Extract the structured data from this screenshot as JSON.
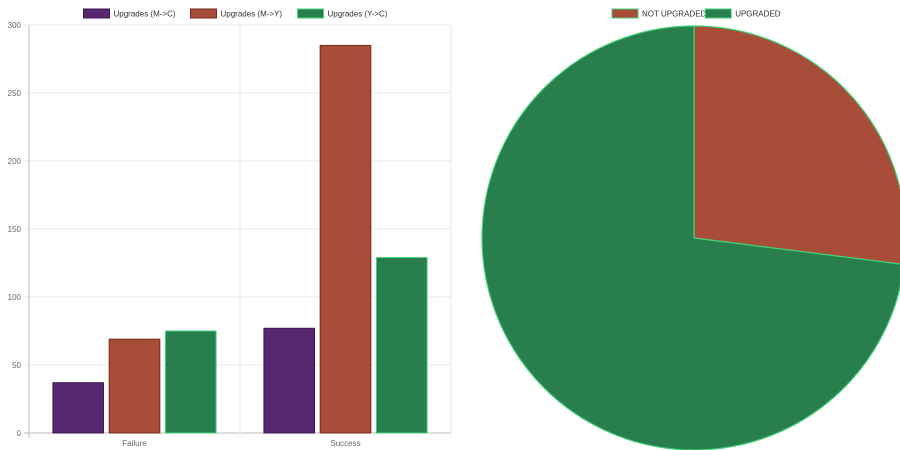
{
  "chart_data": [
    {
      "type": "bar",
      "categories": [
        "Failure",
        "Success"
      ],
      "series": [
        {
          "name": "Upgrades (M->C)",
          "values": [
            37,
            77
          ],
          "color": "#56276f",
          "border": "#3d1a52"
        },
        {
          "name": "Upgrades (M->Y)",
          "values": [
            69,
            285
          ],
          "color": "#a84d37",
          "border": "#7a2a1c"
        },
        {
          "name": "Upgrades (Y->C)",
          "values": [
            75,
            129
          ],
          "color": "#287e4d",
          "border": "#43d07a"
        }
      ],
      "yticks": [
        "0",
        "50",
        "100",
        "150",
        "200",
        "250",
        "300"
      ],
      "ylim": [
        0,
        300
      ],
      "grid": true,
      "legend": "top"
    },
    {
      "type": "pie",
      "slices": [
        {
          "label": "NOT UPGRADED",
          "value": 27,
          "color": "#a84d37"
        },
        {
          "label": "UPGRADED",
          "value": 73,
          "color": "#287e4d"
        }
      ],
      "slice_border": "#43d07a",
      "legend": "top"
    }
  ]
}
